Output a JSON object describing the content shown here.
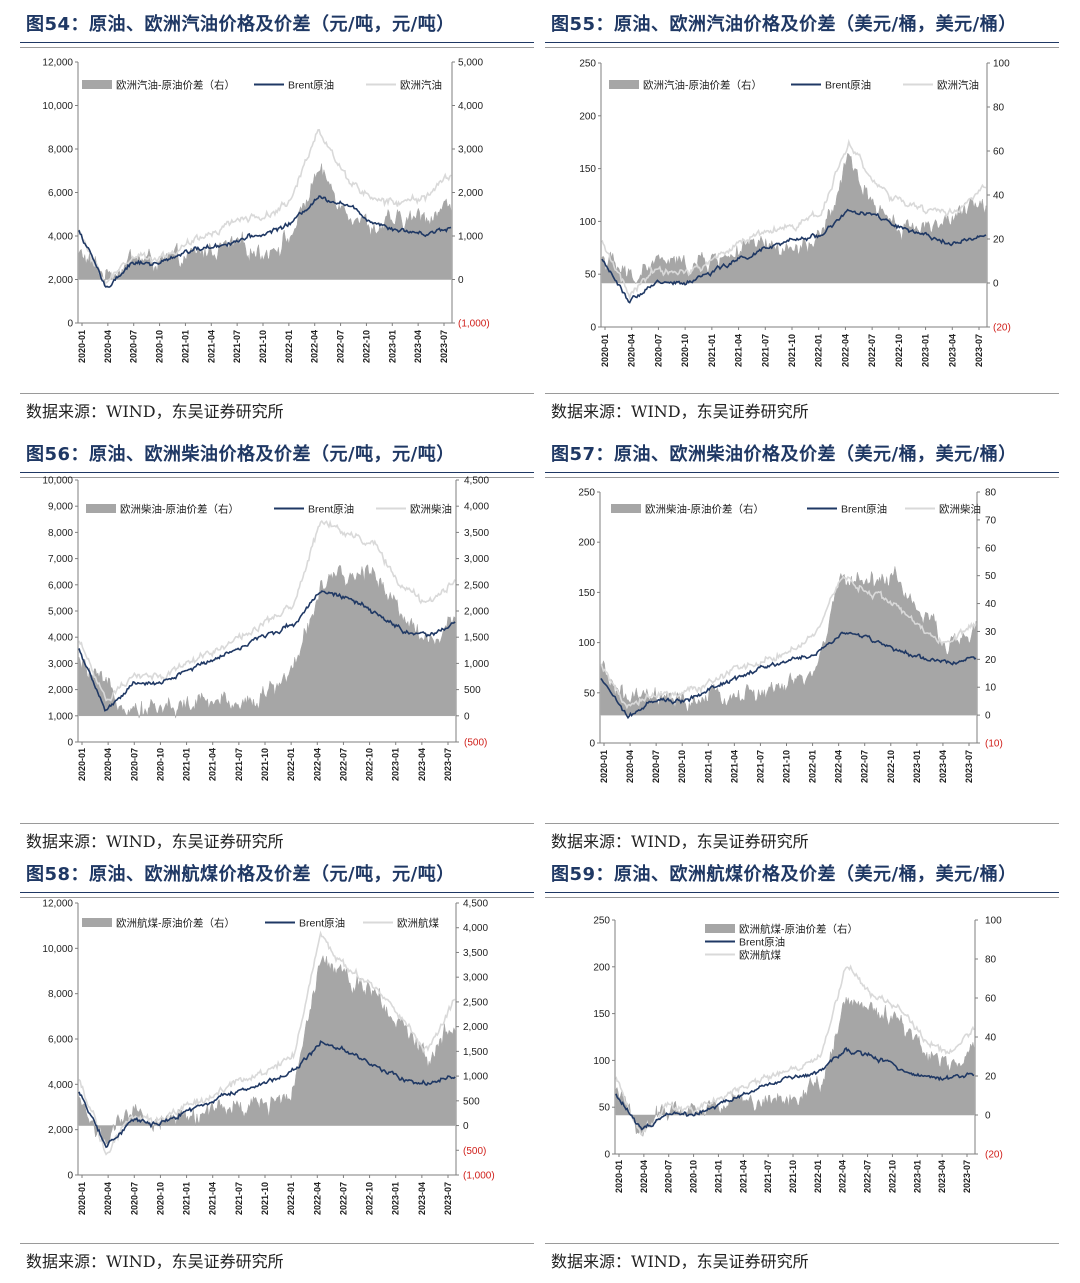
{
  "x_labels": [
    "2020-01",
    "2020-04",
    "2020-07",
    "2020-10",
    "2021-01",
    "2021-04",
    "2021-07",
    "2021-10",
    "2022-01",
    "2022-04",
    "2022-07",
    "2022-10",
    "2023-01",
    "2023-04",
    "2023-07"
  ],
  "source_text": "数据来源：WIND，东吴证券研究所",
  "colors": {
    "spread": "#a6a6a6",
    "brent": "#1f3864",
    "product": "#d9d9d9",
    "title": "#1f3864",
    "negative": "#d0201b"
  },
  "charts": [
    {
      "id": "fig54",
      "title": "图54：原油、欧洲汽油价格及价差（元/吨，元/吨）",
      "source": "数据来源：WIND，东吴证券研究所",
      "legend": {
        "spread": "欧洲汽油-原油价差（右）",
        "brent": "Brent原油",
        "product": "欧洲汽油"
      },
      "left_ticks": [
        "0",
        "2,000",
        "4,000",
        "6,000",
        "8,000",
        "10,000",
        "12,000"
      ],
      "right_ticks": [
        "(1,000)",
        "0",
        "1,000",
        "2,000",
        "3,000",
        "4,000",
        "5,000"
      ]
    },
    {
      "id": "fig55",
      "title": "图55：原油、欧洲汽油价格及价差（美元/桶，美元/桶）",
      "source": "数据来源：WIND，东吴证券研究所",
      "legend": {
        "spread": "欧洲汽油-原油价差（右）",
        "brent": "Brent原油",
        "product": "欧洲汽油"
      },
      "left_ticks": [
        "0",
        "50",
        "100",
        "150",
        "200",
        "250"
      ],
      "right_ticks": [
        "(20)",
        "0",
        "20",
        "40",
        "60",
        "80",
        "100"
      ]
    },
    {
      "id": "fig56",
      "title": "图56：原油、欧洲柴油价格及价差（元/吨，元/吨）",
      "source": "数据来源：WIND，东吴证券研究所",
      "legend": {
        "spread": "欧洲柴油-原油价差（右）",
        "brent": "Brent原油",
        "product": "欧洲柴油"
      },
      "left_ticks": [
        "0",
        "1,000",
        "2,000",
        "3,000",
        "4,000",
        "5,000",
        "6,000",
        "7,000",
        "8,000",
        "9,000",
        "10,000"
      ],
      "right_ticks": [
        "(500)",
        "0",
        "500",
        "1,000",
        "1,500",
        "2,000",
        "2,500",
        "3,000",
        "3,500",
        "4,000",
        "4,500"
      ]
    },
    {
      "id": "fig57",
      "title": "图57：原油、欧洲柴油价格及价差（美元/桶，美元/桶）",
      "source": "数据来源：WIND，东吴证券研究所",
      "legend": {
        "spread": "欧洲柴油-原油价差（右）",
        "brent": "Brent原油",
        "product": "欧洲柴油"
      },
      "left_ticks": [
        "0",
        "50",
        "100",
        "150",
        "200",
        "250"
      ],
      "right_ticks": [
        "(10)",
        "0",
        "10",
        "20",
        "30",
        "40",
        "50",
        "60",
        "70",
        "80"
      ]
    },
    {
      "id": "fig58",
      "title": "图58：原油、欧洲航煤价格及价差（元/吨，元/吨）",
      "source": "数据来源：WIND，东吴证券研究所",
      "legend": {
        "spread": "欧洲航煤-原油价差（右）",
        "brent": "Brent原油",
        "product": "欧洲航煤"
      },
      "left_ticks": [
        "0",
        "2,000",
        "4,000",
        "6,000",
        "8,000",
        "10,000",
        "12,000"
      ],
      "right_ticks": [
        "(1,000)",
        "(500)",
        "0",
        "500",
        "1,000",
        "1,500",
        "2,000",
        "2,500",
        "3,000",
        "3,500",
        "4,000",
        "4,500"
      ]
    },
    {
      "id": "fig59",
      "title": "图59：原油、欧洲航煤价格及价差（美元/桶，美元/桶）",
      "source": "数据来源：WIND，东吴证券研究所",
      "legend": {
        "spread": "欧洲航煤-原油价差（右）",
        "brent": "Brent原油",
        "product": "欧洲航煤"
      },
      "left_ticks": [
        "0",
        "50",
        "100",
        "150",
        "200",
        "250"
      ],
      "right_ticks": [
        "(20)",
        "0",
        "20",
        "40",
        "60",
        "80",
        "100"
      ]
    }
  ],
  "chart_data": [
    {
      "type": "line",
      "title": "图54：原油、欧洲汽油价格及价差（元/吨，元/吨）",
      "x": [
        "2020-01",
        "2020-04",
        "2020-07",
        "2020-10",
        "2021-01",
        "2021-04",
        "2021-07",
        "2021-10",
        "2022-01",
        "2022-04",
        "2022-07",
        "2022-10",
        "2023-01",
        "2023-04",
        "2023-07"
      ],
      "ylim_left": [
        0,
        12000
      ],
      "ylim_right": [
        -1000,
        5000
      ],
      "series": [
        {
          "name": "欧洲汽油-原油价差（右）",
          "axis": "right",
          "kind": "area",
          "values": [
            600,
            100,
            500,
            400,
            450,
            700,
            750,
            650,
            1000,
            2500,
            1700,
            1200,
            1300,
            1450,
            1700
          ]
        },
        {
          "name": "Brent原油",
          "axis": "left",
          "kind": "line",
          "values": [
            4300,
            1600,
            2800,
            2700,
            3300,
            3500,
            3800,
            4100,
            4600,
            5800,
            5500,
            4700,
            4300,
            4100,
            4400
          ]
        },
        {
          "name": "欧洲汽油",
          "axis": "left",
          "kind": "line",
          "values": [
            4300,
            1800,
            3100,
            3000,
            3500,
            4200,
            4800,
            4900,
            5600,
            9000,
            6800,
            5700,
            5500,
            5800,
            6800
          ]
        }
      ]
    },
    {
      "type": "line",
      "title": "图55：原油、欧洲汽油价格及价差（美元/桶，美元/桶）",
      "x": [
        "2020-01",
        "2020-04",
        "2020-07",
        "2020-10",
        "2021-01",
        "2021-04",
        "2021-07",
        "2021-10",
        "2022-01",
        "2022-04",
        "2022-07",
        "2022-10",
        "2023-01",
        "2023-04",
        "2023-07"
      ],
      "ylim_left": [
        0,
        250
      ],
      "ylim_right": [
        -20,
        100
      ],
      "series": [
        {
          "name": "欧洲汽油-原油价差（右）",
          "axis": "right",
          "kind": "area",
          "values": [
            12,
            2,
            10,
            8,
            10,
            15,
            16,
            14,
            20,
            55,
            35,
            25,
            27,
            30,
            37
          ]
        },
        {
          "name": "Brent原油",
          "axis": "left",
          "kind": "line",
          "values": [
            65,
            25,
            43,
            41,
            52,
            64,
            74,
            82,
            88,
            110,
            105,
            92,
            84,
            80,
            86
          ]
        },
        {
          "name": "欧洲汽油",
          "axis": "left",
          "kind": "line",
          "values": [
            80,
            30,
            55,
            50,
            62,
            80,
            92,
            95,
            110,
            175,
            135,
            115,
            110,
            110,
            135
          ]
        }
      ]
    },
    {
      "type": "line",
      "title": "图56：原油、欧洲柴油价格及价差（元/吨，元/吨）",
      "x": [
        "2020-01",
        "2020-04",
        "2020-07",
        "2020-10",
        "2021-01",
        "2021-04",
        "2021-07",
        "2021-10",
        "2022-01",
        "2022-04",
        "2022-07",
        "2022-10",
        "2023-01",
        "2023-04",
        "2023-07"
      ],
      "ylim_left": [
        0,
        10000
      ],
      "ylim_right": [
        -500,
        4500
      ],
      "series": [
        {
          "name": "欧洲柴油-原油价差（右）",
          "axis": "right",
          "kind": "area",
          "values": [
            1000,
            500,
            200,
            150,
            200,
            250,
            300,
            400,
            900,
            2500,
            2600,
            2800,
            2000,
            1400,
            1800
          ]
        },
        {
          "name": "Brent原油",
          "axis": "left",
          "kind": "line",
          "values": [
            3600,
            1200,
            2200,
            2200,
            2700,
            3200,
            3600,
            4100,
            4500,
            5800,
            5500,
            4900,
            4300,
            4000,
            4500
          ]
        },
        {
          "name": "欧洲柴油",
          "axis": "left",
          "kind": "line",
          "values": [
            4000,
            1500,
            2500,
            2500,
            3000,
            3500,
            4000,
            4500,
            5200,
            8500,
            8000,
            7500,
            6000,
            5200,
            6200
          ]
        }
      ]
    },
    {
      "type": "line",
      "title": "图57：原油、欧洲柴油价格及价差（美元/桶，美元/桶）",
      "x": [
        "2020-01",
        "2020-04",
        "2020-07",
        "2020-10",
        "2021-01",
        "2021-04",
        "2021-07",
        "2021-10",
        "2022-01",
        "2022-04",
        "2022-07",
        "2022-10",
        "2023-01",
        "2023-04",
        "2023-07"
      ],
      "ylim_left": [
        0,
        250
      ],
      "ylim_right": [
        -10,
        80
      ],
      "series": [
        {
          "name": "欧洲柴油-原油价差（右）",
          "axis": "right",
          "kind": "area",
          "values": [
            16,
            5,
            6,
            4,
            6,
            7,
            8,
            10,
            15,
            50,
            48,
            50,
            35,
            25,
            30
          ]
        },
        {
          "name": "Brent原油",
          "axis": "left",
          "kind": "line",
          "values": [
            65,
            25,
            43,
            41,
            52,
            64,
            74,
            82,
            88,
            110,
            105,
            92,
            84,
            80,
            86
          ]
        },
        {
          "name": "欧洲柴油",
          "axis": "left",
          "kind": "line",
          "values": [
            80,
            32,
            50,
            48,
            60,
            72,
            82,
            92,
            105,
            165,
            150,
            140,
            110,
            100,
            120
          ]
        }
      ]
    },
    {
      "type": "line",
      "title": "图58：原油、欧洲航煤价格及价差（元/吨，元/吨）",
      "x": [
        "2020-01",
        "2020-04",
        "2020-07",
        "2020-10",
        "2021-01",
        "2021-04",
        "2021-07",
        "2021-10",
        "2022-01",
        "2022-04",
        "2022-07",
        "2022-10",
        "2023-01",
        "2023-04",
        "2023-07"
      ],
      "ylim_left": [
        0,
        12000
      ],
      "ylim_right": [
        -1000,
        4500
      ],
      "series": [
        {
          "name": "欧洲航煤-原油价差（右）",
          "axis": "right",
          "kind": "area",
          "values": [
            500,
            -300,
            200,
            100,
            200,
            300,
            350,
            400,
            800,
            3500,
            3000,
            2800,
            2000,
            1400,
            2200
          ]
        },
        {
          "name": "Brent原油",
          "axis": "left",
          "kind": "line",
          "values": [
            3700,
            1300,
            2400,
            2200,
            2800,
            3300,
            3700,
            4100,
            4600,
            5800,
            5500,
            4800,
            4300,
            4000,
            4400
          ]
        },
        {
          "name": "欧洲航煤",
          "axis": "left",
          "kind": "line",
          "values": [
            4300,
            1000,
            2600,
            2300,
            3000,
            3500,
            4100,
            4600,
            5400,
            10500,
            9000,
            8500,
            6800,
            5500,
            7800
          ]
        }
      ]
    },
    {
      "type": "line",
      "title": "图59：原油、欧洲航煤价格及价差（美元/桶，美元/桶）",
      "x": [
        "2020-01",
        "2020-04",
        "2020-07",
        "2020-10",
        "2021-01",
        "2021-04",
        "2021-07",
        "2021-10",
        "2022-01",
        "2022-04",
        "2022-07",
        "2022-10",
        "2023-01",
        "2023-04",
        "2023-07"
      ],
      "ylim_left": [
        0,
        250
      ],
      "ylim_right": [
        -20,
        100
      ],
      "series": [
        {
          "name": "欧洲航煤-原油价差（右）",
          "axis": "right",
          "kind": "area",
          "values": [
            12,
            -8,
            4,
            3,
            6,
            7,
            8,
            10,
            15,
            60,
            52,
            50,
            35,
            25,
            35
          ]
        },
        {
          "name": "Brent原油",
          "axis": "left",
          "kind": "line",
          "values": [
            65,
            25,
            43,
            41,
            52,
            64,
            74,
            82,
            88,
            110,
            105,
            92,
            84,
            80,
            86
          ]
        },
        {
          "name": "欧洲航煤",
          "axis": "left",
          "kind": "line",
          "values": [
            82,
            18,
            52,
            45,
            60,
            72,
            82,
            92,
            105,
            200,
            170,
            160,
            125,
            105,
            135
          ]
        }
      ]
    }
  ]
}
